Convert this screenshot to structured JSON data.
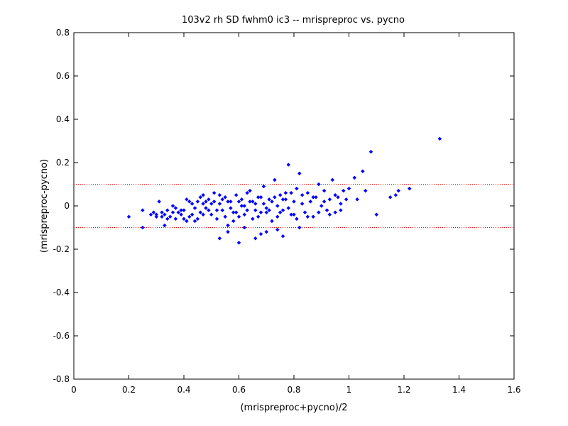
{
  "chart_data": {
    "type": "scatter",
    "title": "103v2 rh SD fwhm0 ic3 -- mrispreproc vs. pycno",
    "xlabel": "(mrispreproc+pycno)/2",
    "ylabel": "(mrispreproc-pycno)",
    "xlim": [
      0,
      1.6
    ],
    "ylim": [
      -0.8,
      0.8
    ],
    "xticks": [
      0,
      0.2,
      0.4,
      0.6,
      0.8,
      1,
      1.2,
      1.4,
      1.6
    ],
    "xtick_labels": [
      "0",
      "0.2",
      "0.4",
      "0.6",
      "0.8",
      "1",
      "1.2",
      "1.4",
      "1.6"
    ],
    "yticks": [
      -0.8,
      -0.6,
      -0.4,
      -0.2,
      0,
      0.2,
      0.4,
      0.6,
      0.8
    ],
    "ytick_labels": [
      "-0.8",
      "-0.6",
      "-0.4",
      "-0.2",
      "0",
      "0.2",
      "0.4",
      "0.6",
      "0.8"
    ],
    "grid": false,
    "reference_lines": [
      {
        "y": 0.1,
        "color": "#ff0000",
        "style": "dotted"
      },
      {
        "y": -0.1,
        "color": "#ff0000",
        "style": "dotted"
      }
    ],
    "marker_color": "#0000ff",
    "series": [
      {
        "points": [
          [
            0.2,
            -0.05
          ],
          [
            0.25,
            -0.1
          ],
          [
            0.25,
            -0.02
          ],
          [
            0.28,
            -0.04
          ],
          [
            0.3,
            -0.05
          ],
          [
            0.31,
            0.02
          ],
          [
            0.32,
            -0.03
          ],
          [
            0.33,
            -0.09
          ],
          [
            0.34,
            -0.02
          ],
          [
            0.35,
            -0.05
          ],
          [
            0.36,
            0.0
          ],
          [
            0.37,
            -0.06
          ],
          [
            0.38,
            -0.03
          ],
          [
            0.39,
            -0.04
          ],
          [
            0.4,
            -0.02
          ],
          [
            0.41,
            0.03
          ],
          [
            0.42,
            -0.05
          ],
          [
            0.43,
            0.01
          ],
          [
            0.44,
            -0.07
          ],
          [
            0.45,
            0.02
          ],
          [
            0.46,
            -0.03
          ],
          [
            0.47,
            0.05
          ],
          [
            0.48,
            -0.01
          ],
          [
            0.49,
            0.03
          ],
          [
            0.5,
            -0.04
          ],
          [
            0.51,
            0.06
          ],
          [
            0.52,
            -0.06
          ],
          [
            0.53,
            0.01
          ],
          [
            0.54,
            -0.02
          ],
          [
            0.55,
            0.04
          ],
          [
            0.56,
            -0.09
          ],
          [
            0.57,
            0.02
          ],
          [
            0.58,
            -0.03
          ],
          [
            0.59,
            0.05
          ],
          [
            0.6,
            -0.05
          ],
          [
            0.61,
            0.03
          ],
          [
            0.62,
            0.0
          ],
          [
            0.63,
            -0.02
          ],
          [
            0.64,
            0.07
          ],
          [
            0.65,
            -0.06
          ],
          [
            0.66,
            0.01
          ],
          [
            0.67,
            0.04
          ],
          [
            0.68,
            -0.03
          ],
          [
            0.69,
            0.09
          ],
          [
            0.7,
            -0.01
          ],
          [
            0.71,
            0.03
          ],
          [
            0.72,
            -0.07
          ],
          [
            0.73,
            0.12
          ],
          [
            0.74,
            0.0
          ],
          [
            0.75,
            0.05
          ],
          [
            0.76,
            -0.02
          ],
          [
            0.77,
            0.06
          ],
          [
            0.78,
            0.19
          ],
          [
            0.79,
            -0.04
          ],
          [
            0.8,
            0.02
          ],
          [
            0.81,
            0.08
          ],
          [
            0.82,
            0.15
          ],
          [
            0.83,
            0.01
          ],
          [
            0.84,
            -0.03
          ],
          [
            0.85,
            0.06
          ],
          [
            0.86,
            0.02
          ],
          [
            0.87,
            -0.05
          ],
          [
            0.88,
            0.04
          ],
          [
            0.89,
            0.1
          ],
          [
            0.9,
            0.0
          ],
          [
            0.91,
            0.07
          ],
          [
            0.92,
            -0.02
          ],
          [
            0.93,
            0.03
          ],
          [
            0.94,
            0.12
          ],
          [
            0.95,
            -0.03
          ],
          [
            0.96,
            0.04
          ],
          [
            0.97,
            0.01
          ],
          [
            0.98,
            0.07
          ],
          [
            1.0,
            0.08
          ],
          [
            1.02,
            0.13
          ],
          [
            1.03,
            0.03
          ],
          [
            1.05,
            0.16
          ],
          [
            1.06,
            0.07
          ],
          [
            1.08,
            0.25
          ],
          [
            1.1,
            -0.04
          ],
          [
            1.15,
            0.04
          ],
          [
            1.17,
            0.05
          ],
          [
            1.18,
            0.07
          ],
          [
            1.22,
            0.08
          ],
          [
            1.33,
            0.31
          ],
          [
            0.47,
            -0.04
          ],
          [
            0.48,
            0.02
          ],
          [
            0.5,
            0.01
          ],
          [
            0.52,
            -0.02
          ],
          [
            0.53,
            0.05
          ],
          [
            0.55,
            -0.05
          ],
          [
            0.56,
            0.02
          ],
          [
            0.58,
            -0.07
          ],
          [
            0.6,
            0.02
          ],
          [
            0.62,
            -0.04
          ],
          [
            0.63,
            0.06
          ],
          [
            0.65,
            0.02
          ],
          [
            0.67,
            -0.05
          ],
          [
            0.68,
            0.04
          ],
          [
            0.7,
            -0.03
          ],
          [
            0.72,
            0.02
          ],
          [
            0.74,
            -0.05
          ],
          [
            0.76,
            0.03
          ],
          [
            0.78,
            -0.01
          ],
          [
            0.8,
            -0.04
          ],
          [
            0.56,
            -0.12
          ],
          [
            0.62,
            -0.1
          ],
          [
            0.66,
            -0.15
          ],
          [
            0.7,
            -0.12
          ],
          [
            0.76,
            -0.14
          ],
          [
            0.82,
            -0.1
          ],
          [
            0.53,
            -0.15
          ],
          [
            0.6,
            -0.17
          ],
          [
            0.68,
            -0.13
          ],
          [
            0.74,
            -0.11
          ],
          [
            0.4,
            -0.06
          ],
          [
            0.42,
            0.02
          ],
          [
            0.44,
            -0.01
          ],
          [
            0.46,
            0.04
          ],
          [
            0.45,
            -0.06
          ],
          [
            0.43,
            -0.04
          ],
          [
            0.41,
            -0.07
          ],
          [
            0.39,
            -0.02
          ],
          [
            0.37,
            -0.01
          ],
          [
            0.36,
            -0.03
          ],
          [
            0.34,
            -0.06
          ],
          [
            0.33,
            -0.04
          ],
          [
            0.32,
            -0.05
          ],
          [
            0.3,
            -0.04
          ],
          [
            0.29,
            -0.03
          ],
          [
            0.47,
            0.01
          ],
          [
            0.49,
            -0.02
          ],
          [
            0.51,
            0.02
          ],
          [
            0.54,
            0.03
          ],
          [
            0.57,
            -0.01
          ],
          [
            0.59,
            -0.03
          ],
          [
            0.61,
            0.0
          ],
          [
            0.64,
            0.02
          ],
          [
            0.66,
            -0.02
          ],
          [
            0.69,
            0.01
          ],
          [
            0.71,
            -0.02
          ],
          [
            0.73,
            0.04
          ],
          [
            0.75,
            -0.03
          ],
          [
            0.77,
            0.03
          ],
          [
            0.79,
            0.06
          ],
          [
            0.81,
            -0.06
          ],
          [
            0.83,
            0.05
          ],
          [
            0.85,
            -0.05
          ],
          [
            0.87,
            0.04
          ],
          [
            0.89,
            -0.03
          ],
          [
            0.91,
            0.02
          ],
          [
            0.93,
            -0.04
          ],
          [
            0.95,
            0.05
          ],
          [
            0.97,
            -0.02
          ],
          [
            0.99,
            0.03
          ]
        ]
      }
    ]
  }
}
